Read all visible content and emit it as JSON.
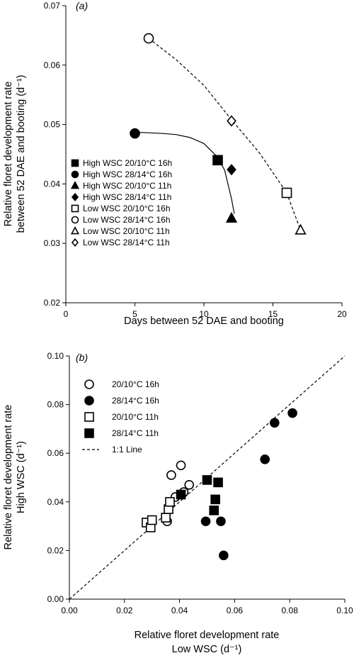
{
  "chart_data": [
    {
      "panel": "(a)",
      "type": "scatter",
      "title": "",
      "xlabel": "Days between 52 DAE and booting",
      "ylabel_lines": [
        "Relative floret development rate",
        "between 52 DAE and booting (d⁻¹)"
      ],
      "xlim": [
        0,
        20
      ],
      "ylim": [
        0.02,
        0.07
      ],
      "xticks": [
        "0",
        "5",
        "10",
        "15",
        "20"
      ],
      "yticks": [
        "0.02",
        "0.03",
        "0.04",
        "0.05",
        "0.06",
        "0.07"
      ],
      "legend_position": "bottom-left",
      "series": [
        {
          "name": "High WSC 20/10°C 16h",
          "marker": "square",
          "fill": "filled",
          "points": [
            [
              11.0,
              0.044
            ]
          ]
        },
        {
          "name": "High WSC 28/14°C 16h",
          "marker": "circle",
          "fill": "filled",
          "points": [
            [
              5.0,
              0.0485
            ]
          ]
        },
        {
          "name": "High WSC 20/10°C 11h",
          "marker": "triangle",
          "fill": "filled",
          "points": [
            [
              12.0,
              0.0342
            ]
          ]
        },
        {
          "name": "High WSC 28/14°C 11h",
          "marker": "diamond",
          "fill": "filled",
          "points": [
            [
              12.0,
              0.0424
            ]
          ]
        },
        {
          "name": "Low WSC 20/10°C 16h",
          "marker": "square",
          "fill": "open",
          "points": [
            [
              16.0,
              0.0385
            ]
          ]
        },
        {
          "name": "Low WSC 28/14°C 16h",
          "marker": "circle",
          "fill": "open",
          "points": [
            [
              6.0,
              0.0645
            ]
          ]
        },
        {
          "name": "Low WSC 20/10°C 11h",
          "marker": "triangle",
          "fill": "open",
          "points": [
            [
              17.0,
              0.0322
            ]
          ]
        },
        {
          "name": "Low WSC 28/14°C 11h",
          "marker": "diamond",
          "fill": "open",
          "points": [
            [
              12.0,
              0.0506
            ]
          ]
        }
      ],
      "fit_lines": [
        {
          "style": "solid",
          "points": [
            [
              5.0,
              0.0487
            ],
            [
              6.0,
              0.0486
            ],
            [
              7.0,
              0.0485
            ],
            [
              8.0,
              0.0483
            ],
            [
              9.0,
              0.0478
            ],
            [
              10.0,
              0.0468
            ],
            [
              11.0,
              0.0445
            ],
            [
              11.5,
              0.0423
            ],
            [
              12.0,
              0.0375
            ],
            [
              12.2,
              0.035
            ]
          ]
        },
        {
          "style": "dashed",
          "points": [
            [
              6.0,
              0.0645
            ],
            [
              8.0,
              0.0609
            ],
            [
              10.0,
              0.0566
            ],
            [
              12.0,
              0.0508
            ],
            [
              14.0,
              0.0453
            ],
            [
              16.0,
              0.0385
            ],
            [
              17.0,
              0.0322
            ]
          ]
        }
      ]
    },
    {
      "panel": "(b)",
      "type": "scatter",
      "title": "",
      "xlabel_lines": [
        "Relative floret development rate",
        "Low WSC (d⁻¹)"
      ],
      "ylabel_lines": [
        "Relative floret development rate",
        "High WSC  (d⁻¹)"
      ],
      "xlim": [
        0,
        0.1
      ],
      "ylim": [
        0,
        0.1
      ],
      "xticks": [
        "0.00",
        "0.02",
        "0.04",
        "0.06",
        "0.08",
        "0.10"
      ],
      "yticks": [
        "0.00",
        "0.02",
        "0.04",
        "0.06",
        "0.08",
        "0.10"
      ],
      "legend_position": "top-left",
      "series": [
        {
          "name": "20/10°C 16h",
          "marker": "circle",
          "fill": "open",
          "points": [
            [
              0.0355,
              0.032
            ],
            [
              0.037,
              0.051
            ],
            [
              0.0405,
              0.055
            ],
            [
              0.0435,
              0.047
            ],
            [
              0.0415,
              0.044
            ],
            [
              0.0385,
              0.042
            ]
          ]
        },
        {
          "name": "28/14°C 16h",
          "marker": "circle",
          "fill": "filled",
          "points": [
            [
              0.0495,
              0.032
            ],
            [
              0.055,
              0.032
            ],
            [
              0.056,
              0.018
            ],
            [
              0.071,
              0.0575
            ],
            [
              0.0745,
              0.0725
            ],
            [
              0.081,
              0.0765
            ]
          ]
        },
        {
          "name": "20/10°C 11h",
          "marker": "square",
          "fill": "open",
          "points": [
            [
              0.028,
              0.0315
            ],
            [
              0.0295,
              0.0295
            ],
            [
              0.03,
              0.0325
            ],
            [
              0.035,
              0.0335
            ],
            [
              0.036,
              0.037
            ],
            [
              0.0365,
              0.04
            ]
          ]
        },
        {
          "name": "28/14°C 11h",
          "marker": "square",
          "fill": "filled",
          "points": [
            [
              0.0405,
              0.043
            ],
            [
              0.05,
              0.049
            ],
            [
              0.054,
              0.048
            ],
            [
              0.053,
              0.041
            ],
            [
              0.0525,
              0.0365
            ]
          ]
        }
      ],
      "reference_line": {
        "name": "1:1 Line",
        "style": "dashed",
        "points": [
          [
            0,
            0
          ],
          [
            0.1,
            0.1
          ]
        ]
      }
    }
  ]
}
